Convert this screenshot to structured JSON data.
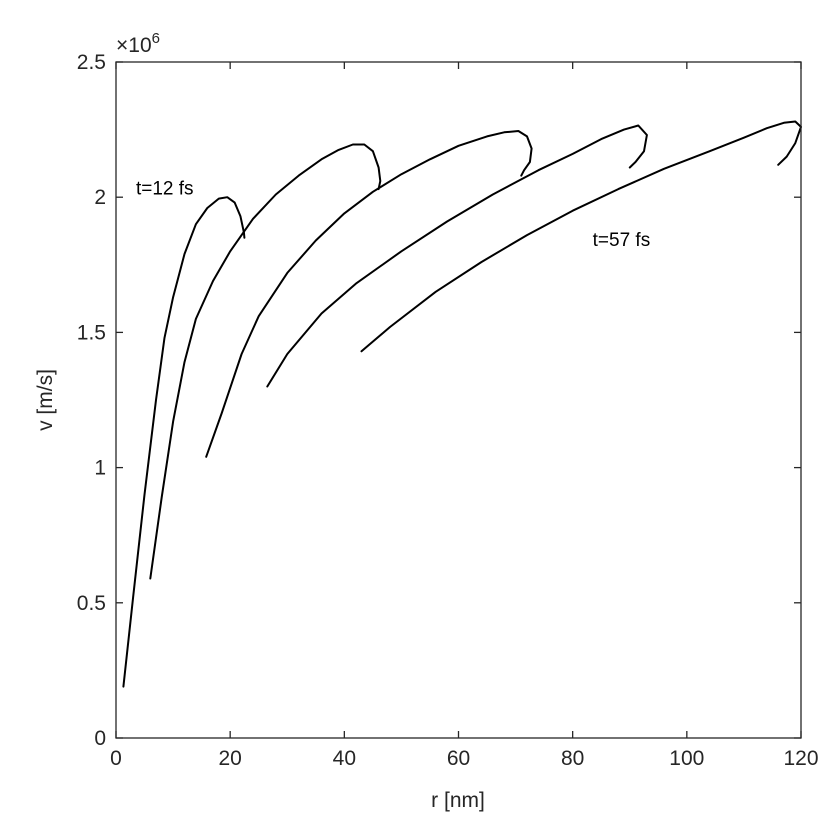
{
  "chart_data": {
    "type": "line",
    "xlabel": "r [nm]",
    "ylabel": "v [m/s]",
    "xlim": [
      0,
      120
    ],
    "ylim": [
      0,
      2500000
    ],
    "y_exponent_label": "×10",
    "y_exponent_power": "6",
    "x_ticks": [
      0,
      20,
      40,
      60,
      80,
      100,
      120
    ],
    "x_tick_labels": [
      "0",
      "20",
      "40",
      "60",
      "80",
      "100",
      "120"
    ],
    "y_ticks": [
      0,
      500000,
      1000000,
      1500000,
      2000000,
      2500000
    ],
    "y_tick_labels": [
      "0",
      "0.5",
      "1",
      "1.5",
      "2",
      "2.5"
    ],
    "grid": false,
    "line_color": "#000000",
    "annotations": [
      {
        "text": "t=12 fs",
        "x": 3.5,
        "y": 2010000
      },
      {
        "text": "t=57 fs",
        "x": 83.5,
        "y": 1820000
      }
    ],
    "series": [
      {
        "x": [
          1.3,
          3,
          5,
          7,
          8.5,
          10,
          12,
          14,
          16,
          18,
          19.5,
          20.8,
          21.8,
          22.4,
          22.5
        ],
        "y": [
          190000,
          520000,
          900000,
          1250000,
          1480000,
          1630000,
          1790000,
          1900000,
          1960000,
          1995000,
          2000000,
          1980000,
          1930000,
          1870000,
          1850000
        ]
      },
      {
        "x": [
          6,
          8,
          10,
          12,
          14,
          17,
          20,
          24,
          28,
          32,
          36,
          39,
          41.5,
          43.5,
          45,
          46,
          46.3,
          46
        ],
        "y": [
          590000,
          890000,
          1170000,
          1390000,
          1550000,
          1690000,
          1800000,
          1920000,
          2010000,
          2080000,
          2140000,
          2175000,
          2195000,
          2195000,
          2170000,
          2110000,
          2060000,
          2030000
        ]
      },
      {
        "x": [
          15.8,
          18.5,
          22,
          25,
          30,
          35,
          40,
          45,
          50,
          55,
          60,
          65,
          68,
          70.5,
          72,
          72.8,
          72.5,
          71.5,
          71
        ],
        "y": [
          1040000,
          1200000,
          1420000,
          1560000,
          1720000,
          1840000,
          1940000,
          2020000,
          2085000,
          2140000,
          2190000,
          2225000,
          2240000,
          2245000,
          2225000,
          2180000,
          2130000,
          2100000,
          2080000
        ]
      },
      {
        "x": [
          26.5,
          30,
          36,
          42,
          50,
          58,
          66,
          74,
          80,
          85,
          89,
          91.5,
          93,
          92.5,
          91,
          90
        ],
        "y": [
          1300000,
          1420000,
          1570000,
          1680000,
          1800000,
          1910000,
          2010000,
          2100000,
          2160000,
          2215000,
          2250000,
          2265000,
          2230000,
          2170000,
          2130000,
          2110000
        ]
      },
      {
        "x": [
          43,
          48,
          56,
          64,
          72,
          80,
          88,
          96,
          104,
          110,
          114,
          117,
          119,
          120,
          119,
          117.5,
          116
        ],
        "y": [
          1430000,
          1520000,
          1650000,
          1760000,
          1860000,
          1950000,
          2030000,
          2105000,
          2170000,
          2220000,
          2255000,
          2275000,
          2280000,
          2260000,
          2200000,
          2150000,
          2120000
        ]
      }
    ]
  }
}
